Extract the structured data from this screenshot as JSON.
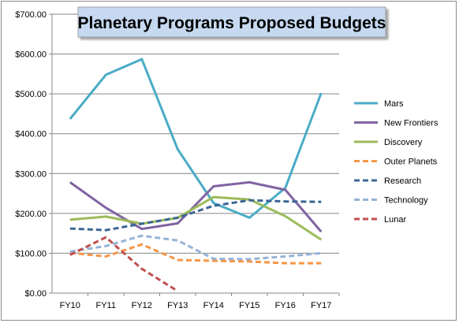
{
  "chart_data": {
    "type": "line",
    "title": "Planetary Programs Proposed Budgets",
    "categories": [
      "FY10",
      "FY11",
      "FY12",
      "FY13",
      "FY14",
      "FY15",
      "FY16",
      "FY17"
    ],
    "y_ticks": [
      "$0.00",
      "$100.00",
      "$200.00",
      "$300.00",
      "$400.00",
      "$500.00",
      "$600.00",
      "$700.00"
    ],
    "ylim": [
      0,
      700
    ],
    "grid": true,
    "legend_position": "right",
    "series": [
      {
        "name": "Mars",
        "color": "#4aacc6",
        "dash": "solid",
        "values": [
          437,
          548,
          587,
          361,
          226,
          189,
          264,
          502
        ]
      },
      {
        "name": "New Frontiers",
        "color": "#8064a2",
        "dash": "solid",
        "values": [
          278,
          214,
          161,
          175,
          268,
          278,
          259,
          154
        ]
      },
      {
        "name": "Discovery",
        "color": "#9bbb59",
        "dash": "solid",
        "values": [
          184,
          192,
          174,
          189,
          241,
          235,
          193,
          134
        ]
      },
      {
        "name": "Outer Planets",
        "color": "#f79646",
        "dash": "dashed",
        "values": [
          101,
          92,
          122,
          83,
          81,
          79,
          75,
          75
        ]
      },
      {
        "name": "Research",
        "color": "#3c6694",
        "dash": "dashed",
        "values": [
          162,
          158,
          174,
          189,
          219,
          233,
          230,
          229
        ]
      },
      {
        "name": "Technology",
        "color": "#95b3d7",
        "dash": "dashed",
        "values": [
          104,
          118,
          144,
          132,
          86,
          85,
          92,
          100
        ]
      },
      {
        "name": "Lunar",
        "color": "#c0504d",
        "dash": "dashed",
        "values": [
          96,
          140,
          61,
          5,
          null,
          null,
          null,
          null
        ]
      }
    ]
  }
}
